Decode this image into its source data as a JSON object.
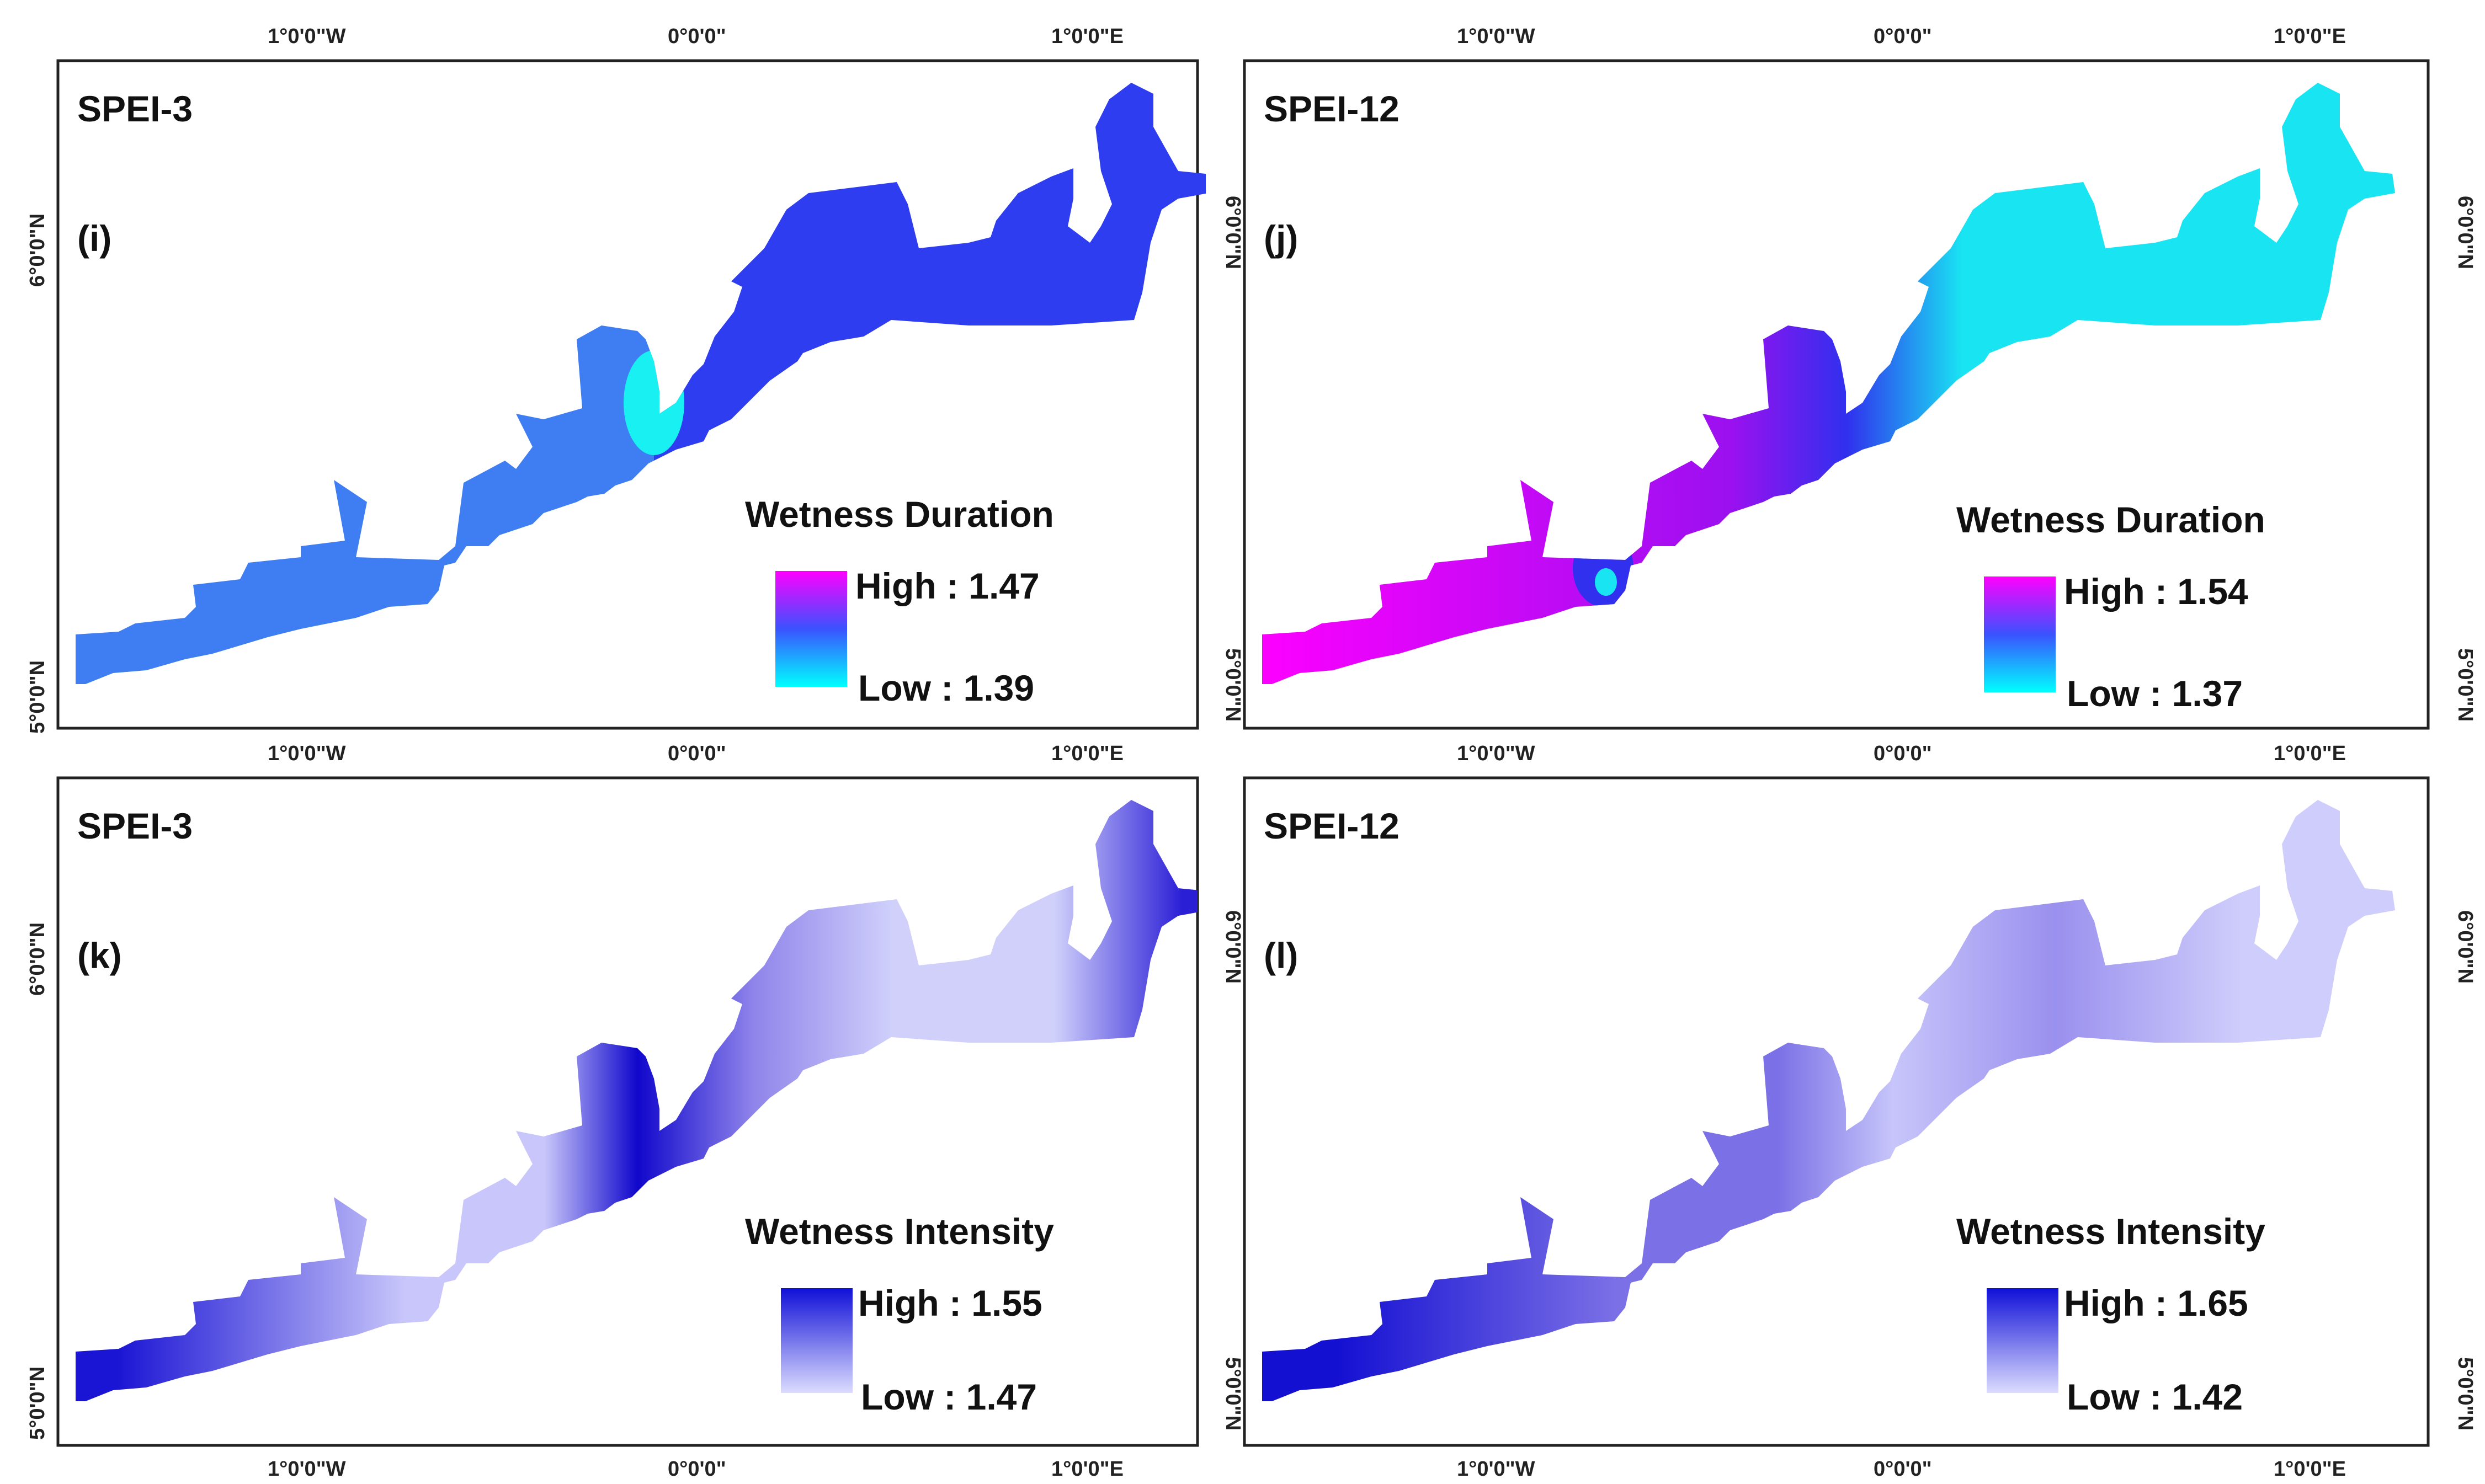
{
  "panels": [
    {
      "id": "i",
      "index_label": "SPEI-3",
      "panel_label": "(i)",
      "legend": {
        "title": "Wetness Duration",
        "high_label": "High : 1.47",
        "low_label": "Low : 1.39"
      },
      "colors": {
        "stop_high": "#ff00ff",
        "stop_mid": "#3a52ff",
        "stop_low": "#00ffff",
        "west_fill": "#3f7df2",
        "east_fill": "#2f3df0",
        "cyan_patch": "#19f0f2"
      }
    },
    {
      "id": "j",
      "index_label": "SPEI-12",
      "panel_label": "(j)",
      "legend": {
        "title": "Wetness Duration",
        "high_label": "High : 1.54",
        "low_label": "Low : 1.37"
      },
      "colors": {
        "stop_high": "#ff00ff",
        "stop_mid": "#3a52ff",
        "stop_low": "#00ffff",
        "west": "#ff00ff",
        "mid_purple": "#9b10ef",
        "mid_blue": "#3030ee",
        "east": "#19e5f2"
      }
    },
    {
      "id": "k",
      "index_label": "SPEI-3",
      "panel_label": "(k)",
      "legend": {
        "title": "Wetness Intensity",
        "high_label": "High : 1.55",
        "low_label": "Low : 1.47"
      },
      "colors": {
        "stop_high": "#1010d8",
        "stop_low": "#dcdcff",
        "west": "#1a14d4",
        "light_a": "#c8c6fa",
        "dark_mid": "#1007cc",
        "mid_violet": "#8f84ea",
        "light_b": "#d0d0fb",
        "east_tip": "#2b1fd6"
      }
    },
    {
      "id": "l",
      "index_label": "SPEI-12",
      "panel_label": "(l)",
      "legend": {
        "title": "Wetness Intensity",
        "high_label": "High : 1.65",
        "low_label": "Low : 1.42"
      },
      "colors": {
        "stop_high": "#1010d8",
        "stop_low": "#dcdcff",
        "west": "#1410d2",
        "violet": "#7b70e6",
        "light_mid": "#c7c5fa",
        "violet_b": "#9a90ee",
        "east": "#cfcdfb"
      }
    }
  ],
  "axes": {
    "x_ticks": [
      "1°0'0\"W",
      "0°0'0\"",
      "1°0'0\"E"
    ],
    "y_ticks": [
      "6°0'0\"N",
      "5°0'0\"N"
    ]
  }
}
